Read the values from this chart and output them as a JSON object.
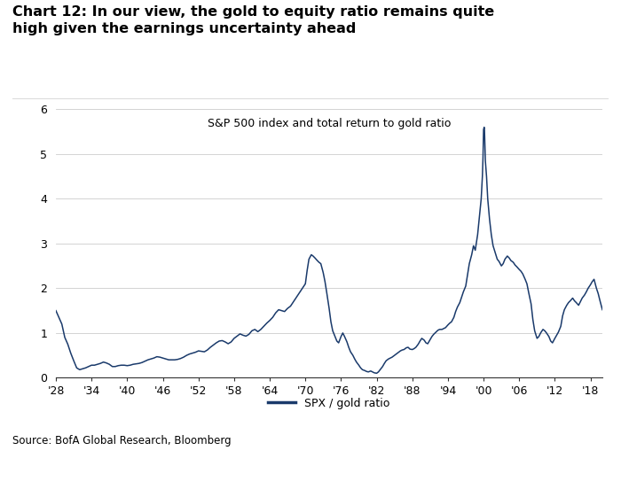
{
  "title_main": "Chart 12: In our view, the gold to equity ratio remains quite\nhigh given the earnings uncertainty ahead",
  "subtitle": "S&P 500 index and total return to gold ratio",
  "source": "Source: BofA Global Research, Bloomberg",
  "legend_label": "SPX / gold ratio",
  "line_color": "#1a3a6b",
  "line_width": 1.1,
  "background_color": "#ffffff",
  "xlim": [
    1928,
    2020
  ],
  "ylim": [
    0,
    6
  ],
  "yticks": [
    0,
    1,
    2,
    3,
    4,
    5,
    6
  ],
  "xtick_labels": [
    "'28",
    "'34",
    "'40",
    "'46",
    "'52",
    "'58",
    "'64",
    "'70",
    "'76",
    "'82",
    "'88",
    "'94",
    "'00",
    "'06",
    "'12",
    "'18"
  ],
  "xtick_positions": [
    1928,
    1934,
    1940,
    1946,
    1952,
    1958,
    1964,
    1970,
    1976,
    1982,
    1988,
    1994,
    2000,
    2006,
    2012,
    2018
  ],
  "data": [
    [
      1928.0,
      1.5
    ],
    [
      1928.5,
      1.35
    ],
    [
      1929.0,
      1.2
    ],
    [
      1929.5,
      0.9
    ],
    [
      1930.0,
      0.75
    ],
    [
      1930.5,
      0.55
    ],
    [
      1931.0,
      0.38
    ],
    [
      1931.5,
      0.22
    ],
    [
      1932.0,
      0.18
    ],
    [
      1932.5,
      0.2
    ],
    [
      1933.0,
      0.22
    ],
    [
      1933.5,
      0.25
    ],
    [
      1934.0,
      0.28
    ],
    [
      1934.5,
      0.28
    ],
    [
      1935.0,
      0.3
    ],
    [
      1935.5,
      0.32
    ],
    [
      1936.0,
      0.35
    ],
    [
      1936.5,
      0.33
    ],
    [
      1937.0,
      0.3
    ],
    [
      1937.5,
      0.25
    ],
    [
      1938.0,
      0.25
    ],
    [
      1938.5,
      0.27
    ],
    [
      1939.0,
      0.28
    ],
    [
      1939.5,
      0.28
    ],
    [
      1940.0,
      0.27
    ],
    [
      1940.5,
      0.28
    ],
    [
      1941.0,
      0.3
    ],
    [
      1941.5,
      0.31
    ],
    [
      1942.0,
      0.32
    ],
    [
      1942.5,
      0.34
    ],
    [
      1943.0,
      0.37
    ],
    [
      1943.5,
      0.4
    ],
    [
      1944.0,
      0.42
    ],
    [
      1944.5,
      0.44
    ],
    [
      1945.0,
      0.47
    ],
    [
      1945.5,
      0.46
    ],
    [
      1946.0,
      0.44
    ],
    [
      1946.5,
      0.42
    ],
    [
      1947.0,
      0.4
    ],
    [
      1947.5,
      0.4
    ],
    [
      1948.0,
      0.4
    ],
    [
      1948.5,
      0.41
    ],
    [
      1949.0,
      0.43
    ],
    [
      1949.5,
      0.46
    ],
    [
      1950.0,
      0.5
    ],
    [
      1950.5,
      0.53
    ],
    [
      1951.0,
      0.55
    ],
    [
      1951.5,
      0.57
    ],
    [
      1952.0,
      0.6
    ],
    [
      1952.5,
      0.59
    ],
    [
      1953.0,
      0.58
    ],
    [
      1953.5,
      0.62
    ],
    [
      1954.0,
      0.68
    ],
    [
      1954.5,
      0.73
    ],
    [
      1955.0,
      0.78
    ],
    [
      1955.5,
      0.82
    ],
    [
      1956.0,
      0.83
    ],
    [
      1956.5,
      0.8
    ],
    [
      1957.0,
      0.76
    ],
    [
      1957.5,
      0.8
    ],
    [
      1958.0,
      0.88
    ],
    [
      1958.5,
      0.93
    ],
    [
      1959.0,
      0.98
    ],
    [
      1959.5,
      0.95
    ],
    [
      1960.0,
      0.93
    ],
    [
      1960.5,
      0.97
    ],
    [
      1961.0,
      1.05
    ],
    [
      1961.5,
      1.08
    ],
    [
      1962.0,
      1.03
    ],
    [
      1962.5,
      1.08
    ],
    [
      1963.0,
      1.15
    ],
    [
      1963.5,
      1.22
    ],
    [
      1964.0,
      1.28
    ],
    [
      1964.5,
      1.35
    ],
    [
      1965.0,
      1.45
    ],
    [
      1965.5,
      1.52
    ],
    [
      1966.0,
      1.5
    ],
    [
      1966.5,
      1.48
    ],
    [
      1967.0,
      1.55
    ],
    [
      1967.5,
      1.6
    ],
    [
      1968.0,
      1.7
    ],
    [
      1968.5,
      1.8
    ],
    [
      1969.0,
      1.9
    ],
    [
      1969.5,
      2.0
    ],
    [
      1970.0,
      2.1
    ],
    [
      1970.3,
      2.4
    ],
    [
      1970.6,
      2.65
    ],
    [
      1971.0,
      2.75
    ],
    [
      1971.3,
      2.72
    ],
    [
      1971.6,
      2.68
    ],
    [
      1972.0,
      2.62
    ],
    [
      1972.3,
      2.58
    ],
    [
      1972.6,
      2.55
    ],
    [
      1973.0,
      2.35
    ],
    [
      1973.3,
      2.15
    ],
    [
      1973.6,
      1.9
    ],
    [
      1974.0,
      1.55
    ],
    [
      1974.3,
      1.25
    ],
    [
      1974.6,
      1.05
    ],
    [
      1975.0,
      0.92
    ],
    [
      1975.3,
      0.82
    ],
    [
      1975.6,
      0.78
    ],
    [
      1976.0,
      0.92
    ],
    [
      1976.3,
      1.0
    ],
    [
      1976.6,
      0.92
    ],
    [
      1977.0,
      0.8
    ],
    [
      1977.3,
      0.68
    ],
    [
      1977.6,
      0.58
    ],
    [
      1978.0,
      0.5
    ],
    [
      1978.3,
      0.42
    ],
    [
      1978.6,
      0.35
    ],
    [
      1979.0,
      0.28
    ],
    [
      1979.3,
      0.22
    ],
    [
      1979.6,
      0.18
    ],
    [
      1980.0,
      0.16
    ],
    [
      1980.3,
      0.14
    ],
    [
      1980.6,
      0.13
    ],
    [
      1981.0,
      0.15
    ],
    [
      1981.3,
      0.13
    ],
    [
      1981.6,
      0.11
    ],
    [
      1982.0,
      0.1
    ],
    [
      1982.3,
      0.13
    ],
    [
      1982.6,
      0.18
    ],
    [
      1983.0,
      0.25
    ],
    [
      1983.3,
      0.32
    ],
    [
      1983.6,
      0.38
    ],
    [
      1984.0,
      0.42
    ],
    [
      1984.3,
      0.44
    ],
    [
      1984.6,
      0.46
    ],
    [
      1985.0,
      0.5
    ],
    [
      1985.3,
      0.53
    ],
    [
      1985.6,
      0.56
    ],
    [
      1986.0,
      0.6
    ],
    [
      1986.3,
      0.62
    ],
    [
      1986.6,
      0.63
    ],
    [
      1987.0,
      0.67
    ],
    [
      1987.3,
      0.68
    ],
    [
      1987.6,
      0.64
    ],
    [
      1988.0,
      0.63
    ],
    [
      1988.3,
      0.65
    ],
    [
      1988.6,
      0.68
    ],
    [
      1989.0,
      0.75
    ],
    [
      1989.3,
      0.82
    ],
    [
      1989.6,
      0.88
    ],
    [
      1990.0,
      0.84
    ],
    [
      1990.3,
      0.78
    ],
    [
      1990.6,
      0.76
    ],
    [
      1991.0,
      0.85
    ],
    [
      1991.3,
      0.92
    ],
    [
      1991.6,
      0.97
    ],
    [
      1992.0,
      1.02
    ],
    [
      1992.3,
      1.06
    ],
    [
      1992.6,
      1.08
    ],
    [
      1993.0,
      1.08
    ],
    [
      1993.3,
      1.1
    ],
    [
      1993.6,
      1.12
    ],
    [
      1994.0,
      1.18
    ],
    [
      1994.3,
      1.22
    ],
    [
      1994.6,
      1.25
    ],
    [
      1995.0,
      1.35
    ],
    [
      1995.3,
      1.48
    ],
    [
      1995.6,
      1.58
    ],
    [
      1996.0,
      1.68
    ],
    [
      1996.3,
      1.8
    ],
    [
      1996.6,
      1.92
    ],
    [
      1997.0,
      2.05
    ],
    [
      1997.3,
      2.3
    ],
    [
      1997.6,
      2.55
    ],
    [
      1998.0,
      2.75
    ],
    [
      1998.3,
      2.95
    ],
    [
      1998.6,
      2.85
    ],
    [
      1999.0,
      3.2
    ],
    [
      1999.3,
      3.6
    ],
    [
      1999.6,
      4.0
    ],
    [
      1999.8,
      4.5
    ],
    [
      1999.9,
      4.9
    ],
    [
      2000.0,
      5.55
    ],
    [
      2000.1,
      5.6
    ],
    [
      2000.15,
      5.55
    ],
    [
      2000.2,
      5.3
    ],
    [
      2000.3,
      4.85
    ],
    [
      2000.5,
      4.5
    ],
    [
      2000.7,
      4.0
    ],
    [
      2001.0,
      3.55
    ],
    [
      2001.3,
      3.2
    ],
    [
      2001.6,
      2.95
    ],
    [
      2002.0,
      2.78
    ],
    [
      2002.3,
      2.65
    ],
    [
      2002.6,
      2.6
    ],
    [
      2003.0,
      2.5
    ],
    [
      2003.3,
      2.55
    ],
    [
      2003.6,
      2.65
    ],
    [
      2004.0,
      2.72
    ],
    [
      2004.3,
      2.68
    ],
    [
      2004.6,
      2.62
    ],
    [
      2005.0,
      2.58
    ],
    [
      2005.3,
      2.52
    ],
    [
      2005.6,
      2.48
    ],
    [
      2006.0,
      2.42
    ],
    [
      2006.3,
      2.38
    ],
    [
      2006.6,
      2.32
    ],
    [
      2007.0,
      2.2
    ],
    [
      2007.3,
      2.1
    ],
    [
      2007.6,
      1.9
    ],
    [
      2008.0,
      1.65
    ],
    [
      2008.3,
      1.3
    ],
    [
      2008.6,
      1.05
    ],
    [
      2009.0,
      0.88
    ],
    [
      2009.3,
      0.92
    ],
    [
      2009.6,
      1.0
    ],
    [
      2010.0,
      1.08
    ],
    [
      2010.3,
      1.05
    ],
    [
      2010.6,
      1.0
    ],
    [
      2011.0,
      0.92
    ],
    [
      2011.3,
      0.82
    ],
    [
      2011.6,
      0.78
    ],
    [
      2012.0,
      0.88
    ],
    [
      2012.3,
      0.95
    ],
    [
      2012.6,
      1.02
    ],
    [
      2013.0,
      1.15
    ],
    [
      2013.3,
      1.38
    ],
    [
      2013.6,
      1.52
    ],
    [
      2014.0,
      1.62
    ],
    [
      2014.3,
      1.68
    ],
    [
      2014.6,
      1.72
    ],
    [
      2015.0,
      1.78
    ],
    [
      2015.3,
      1.72
    ],
    [
      2015.6,
      1.68
    ],
    [
      2016.0,
      1.62
    ],
    [
      2016.3,
      1.7
    ],
    [
      2016.6,
      1.78
    ],
    [
      2017.0,
      1.85
    ],
    [
      2017.3,
      1.92
    ],
    [
      2017.6,
      2.0
    ],
    [
      2018.0,
      2.08
    ],
    [
      2018.3,
      2.15
    ],
    [
      2018.6,
      2.2
    ],
    [
      2019.0,
      2.0
    ],
    [
      2019.3,
      1.88
    ],
    [
      2019.6,
      1.72
    ],
    [
      2020.0,
      1.52
    ]
  ]
}
